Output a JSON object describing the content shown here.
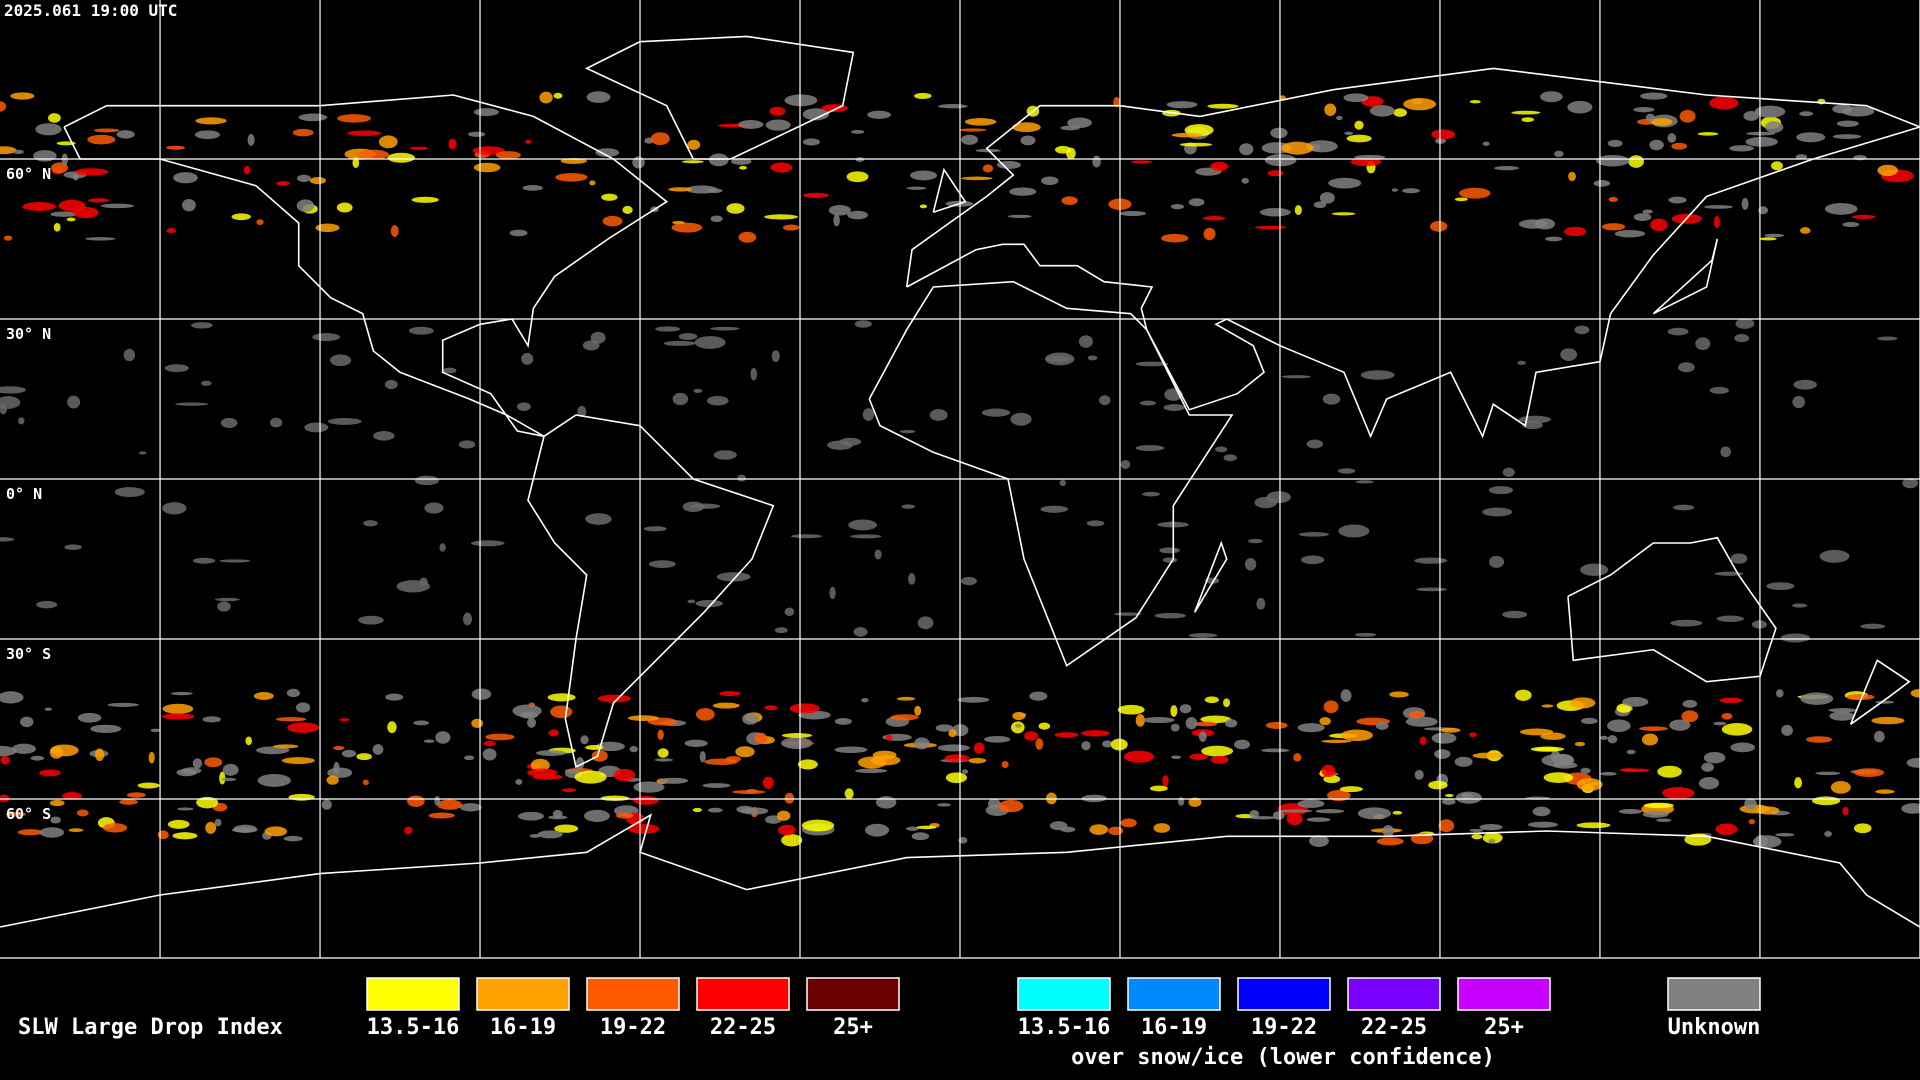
{
  "header": {
    "timestamp": "2025.061 19:00 UTC"
  },
  "map": {
    "latitude_labels": [
      "60° N",
      "30° N",
      "0° N",
      "30° S",
      "60° S"
    ]
  },
  "legend": {
    "title": "SLW Large Drop Index",
    "groups": [
      {
        "items": [
          {
            "label": "13.5-16",
            "color": "#ffff00"
          },
          {
            "label": "16-19",
            "color": "#ffa000"
          },
          {
            "label": "19-22",
            "color": "#ff5a00"
          },
          {
            "label": "22-25",
            "color": "#ff0000"
          },
          {
            "label": "25+",
            "color": "#6b0000"
          }
        ]
      },
      {
        "items": [
          {
            "label": "13.5-16",
            "color": "#00ffff"
          },
          {
            "label": "16-19",
            "color": "#0088ff"
          },
          {
            "label": "19-22",
            "color": "#0000ff"
          },
          {
            "label": "22-25",
            "color": "#7a00ff"
          },
          {
            "label": "25+",
            "color": "#c800ff"
          }
        ],
        "caption": "over snow/ice (lower confidence)"
      }
    ],
    "unknown": {
      "label": "Unknown",
      "color": "#808080"
    }
  }
}
